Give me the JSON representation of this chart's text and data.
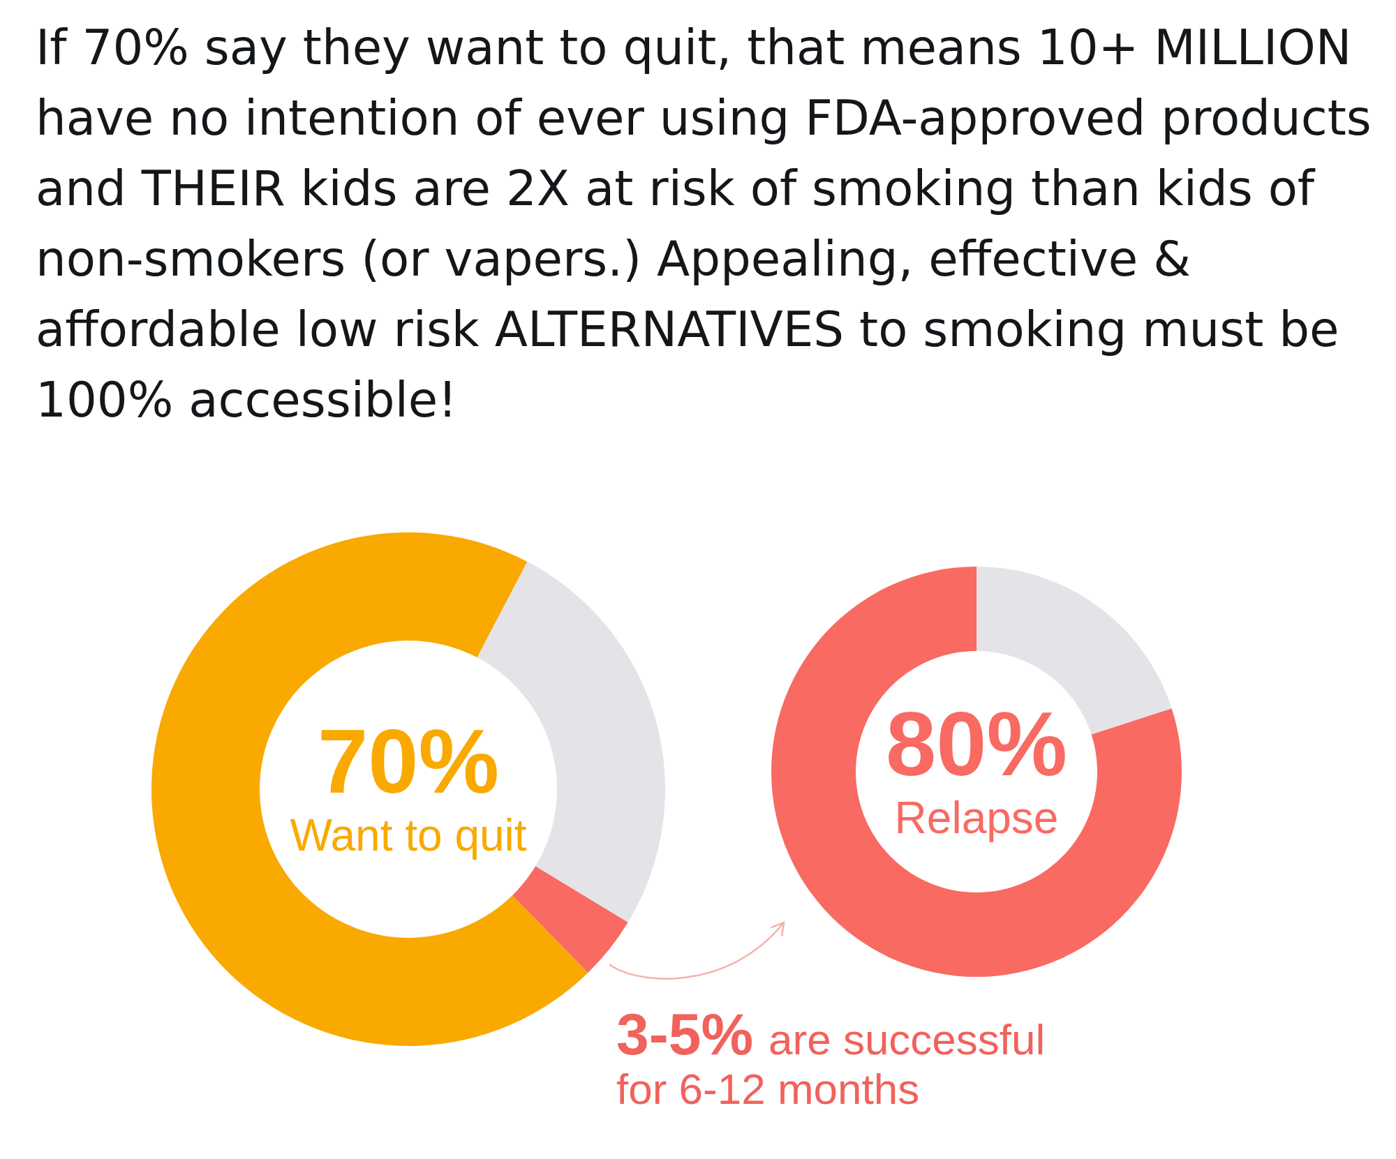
{
  "chart_data": [
    {
      "type": "donut",
      "title": "If 70% say they want to quit, that means 10+ MILLION have no intention of ever using FDA-approved products and THEIR kids are 2X at risk of smoking than kids of non-smokers (or vapers.) Appealing, effective & affordable low risk ALTERNATIVES to smoking must be 100% accessible!",
      "categories": [
        "Want to quit",
        null,
        null
      ],
      "values": [
        70,
        4,
        26
      ],
      "colors": [
        "#f9a900",
        "#f86a62",
        "#e4e4e8"
      ],
      "value_labels": [
        "70%",
        null,
        null
      ],
      "annotations": [
        "3-5% are successful for 6-12 months"
      ]
    },
    {
      "type": "donut",
      "categories": [
        "Relapse",
        null
      ],
      "values": [
        80,
        20
      ],
      "colors": [
        "#f86a62",
        "#e4e4e8"
      ],
      "value_labels": [
        "80%",
        null
      ]
    }
  ]
}
